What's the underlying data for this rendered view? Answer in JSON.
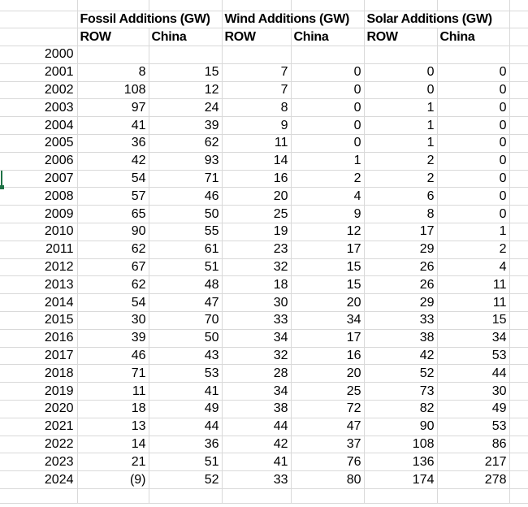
{
  "sheet": {
    "colors": {
      "gridline": "#d9d9d9",
      "selection_green": "#1e7145",
      "text": "#000000",
      "background": "#ffffff"
    },
    "header": {
      "groups": [
        "Fossil Additions (GW)",
        "Wind Additions (GW)",
        "Solar Additions (GW)"
      ],
      "columns": [
        "ROW",
        "China",
        "ROW",
        "China",
        "ROW",
        "China"
      ]
    },
    "rows": [
      {
        "year": "2000",
        "values": [
          "",
          "",
          "",
          "",
          "",
          ""
        ]
      },
      {
        "year": "2001",
        "values": [
          "8",
          "15",
          "7",
          "0",
          "0",
          "0"
        ]
      },
      {
        "year": "2002",
        "values": [
          "108",
          "12",
          "7",
          "0",
          "0",
          "0"
        ]
      },
      {
        "year": "2003",
        "values": [
          "97",
          "24",
          "8",
          "0",
          "1",
          "0"
        ]
      },
      {
        "year": "2004",
        "values": [
          "41",
          "39",
          "9",
          "0",
          "1",
          "0"
        ]
      },
      {
        "year": "2005",
        "values": [
          "36",
          "62",
          "11",
          "0",
          "1",
          "0"
        ]
      },
      {
        "year": "2006",
        "values": [
          "42",
          "93",
          "14",
          "1",
          "2",
          "0"
        ]
      },
      {
        "year": "2007",
        "values": [
          "54",
          "71",
          "16",
          "2",
          "2",
          "0"
        ]
      },
      {
        "year": "2008",
        "values": [
          "57",
          "46",
          "20",
          "4",
          "6",
          "0"
        ]
      },
      {
        "year": "2009",
        "values": [
          "65",
          "50",
          "25",
          "9",
          "8",
          "0"
        ]
      },
      {
        "year": "2010",
        "values": [
          "90",
          "55",
          "19",
          "12",
          "17",
          "1"
        ]
      },
      {
        "year": "2011",
        "values": [
          "62",
          "61",
          "23",
          "17",
          "29",
          "2"
        ]
      },
      {
        "year": "2012",
        "values": [
          "67",
          "51",
          "32",
          "15",
          "26",
          "4"
        ]
      },
      {
        "year": "2013",
        "values": [
          "62",
          "48",
          "18",
          "15",
          "26",
          "11"
        ]
      },
      {
        "year": "2014",
        "values": [
          "54",
          "47",
          "30",
          "20",
          "29",
          "11"
        ]
      },
      {
        "year": "2015",
        "values": [
          "30",
          "70",
          "33",
          "34",
          "33",
          "15"
        ]
      },
      {
        "year": "2016",
        "values": [
          "39",
          "50",
          "34",
          "17",
          "38",
          "34"
        ]
      },
      {
        "year": "2017",
        "values": [
          "46",
          "43",
          "32",
          "16",
          "42",
          "53"
        ]
      },
      {
        "year": "2018",
        "values": [
          "71",
          "53",
          "28",
          "20",
          "52",
          "44"
        ]
      },
      {
        "year": "2019",
        "values": [
          "11",
          "41",
          "34",
          "25",
          "73",
          "30"
        ]
      },
      {
        "year": "2020",
        "values": [
          "18",
          "49",
          "38",
          "72",
          "82",
          "49"
        ]
      },
      {
        "year": "2021",
        "values": [
          "13",
          "44",
          "44",
          "47",
          "90",
          "53"
        ]
      },
      {
        "year": "2022",
        "values": [
          "14",
          "36",
          "42",
          "37",
          "108",
          "86"
        ]
      },
      {
        "year": "2023",
        "values": [
          "21",
          "51",
          "41",
          "76",
          "136",
          "217"
        ]
      },
      {
        "year": "2024",
        "values": [
          "(9)",
          "52",
          "33",
          "80",
          "174",
          "278"
        ]
      }
    ],
    "selection": {
      "row_year": "2007"
    }
  }
}
